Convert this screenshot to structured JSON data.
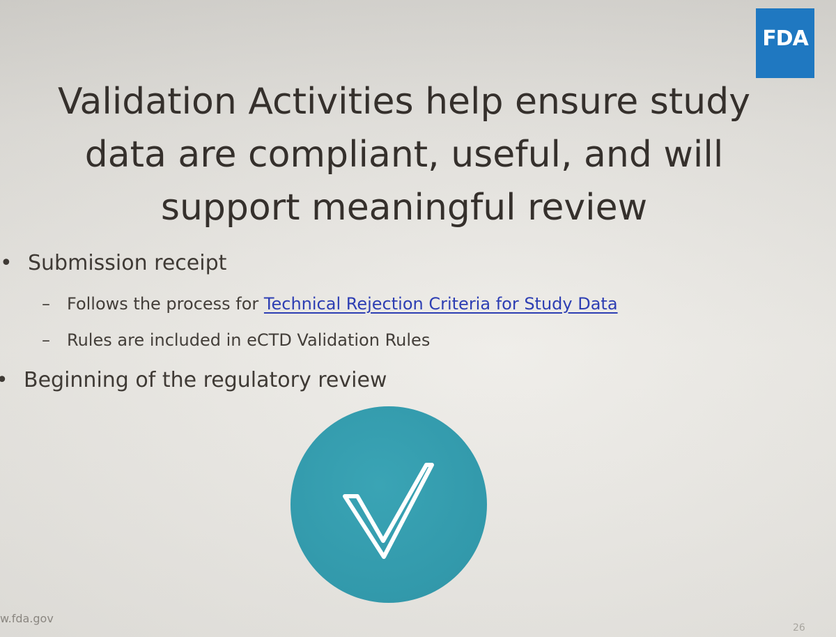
{
  "logo": {
    "text": "FDA",
    "color": "#1f78c1"
  },
  "slide": {
    "title": "Validation Activities help ensure study data are compliant, useful, and will support meaningful review",
    "bullets": [
      {
        "text": "Submission receipt",
        "sub_items": [
          {
            "prefix": "Follows the process for ",
            "link": "Technical Rejection Criteria for Study Data"
          },
          {
            "text": "Rules are included in eCTD Validation Rules"
          }
        ]
      },
      {
        "text": "Beginning of the regulatory review"
      }
    ],
    "bullet_char": "•",
    "dash_char": "–"
  },
  "graphic": {
    "icon": "checkmark-icon",
    "color": "#3299ab"
  },
  "footer": {
    "url": "w.fda.gov",
    "page_number": "26"
  }
}
